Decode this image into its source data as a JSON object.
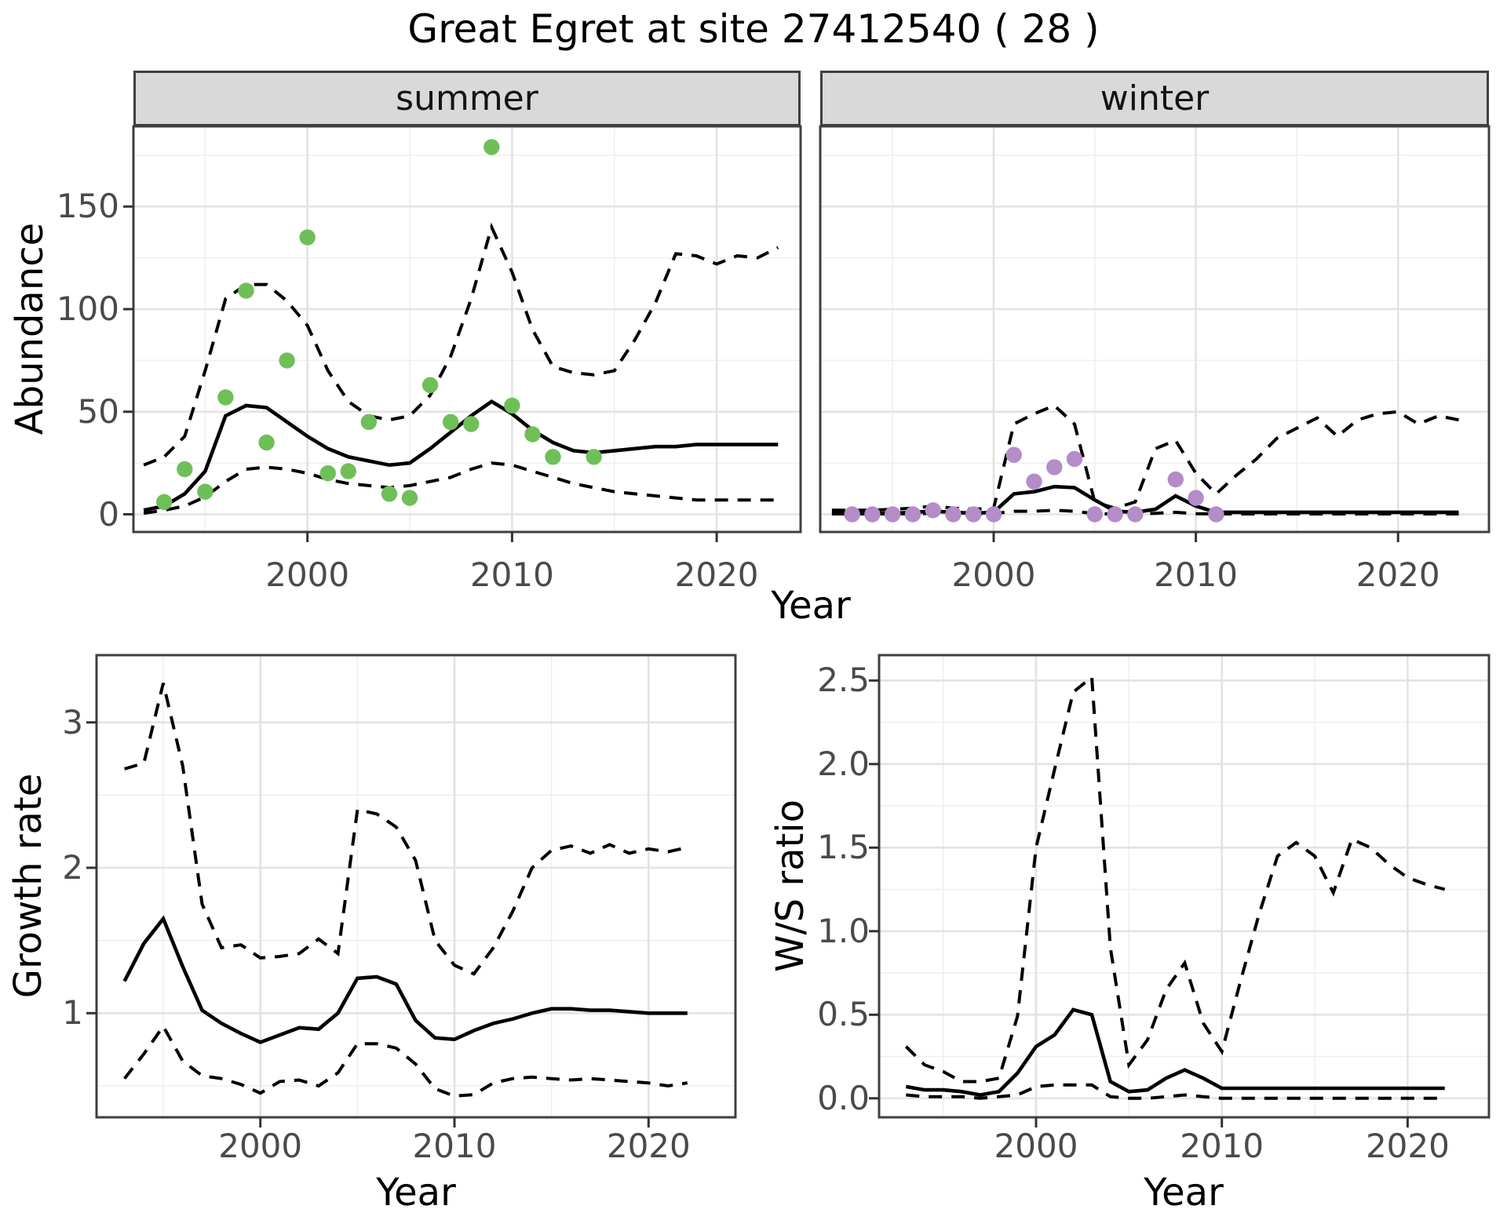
{
  "title": "Great Egret at site 27412540 ( 28 )",
  "facets": {
    "summer_label": "summer",
    "winter_label": "winter"
  },
  "axes": {
    "abundance_label": "Abundance",
    "growth_label": "Growth rate",
    "ws_label": "W/S ratio",
    "year_label": "Year"
  },
  "colors": {
    "summer_point": "#6FBF59",
    "winter_point": "#B48CC8",
    "line": "#000000",
    "grid_major": "#e3e3e3",
    "grid_minor": "#efefef",
    "strip_bg": "#d9d9d9",
    "panel_border": "#3f3f3f",
    "tick": "#333333",
    "tick_text": "#4a4a4a",
    "background": "#ffffff"
  },
  "chart_data": [
    {
      "id": "summer-abundance",
      "type": "line",
      "facet": "summer",
      "title": "",
      "xlabel": "Year",
      "ylabel": "Abundance",
      "xlim": [
        1991.5,
        2024.5
      ],
      "ylim": [
        -9,
        189
      ],
      "grid": true,
      "legend_position": "none",
      "xticks": [
        2000,
        2010,
        2020
      ],
      "xtick_labels": [
        "2000",
        "2010",
        "2020"
      ],
      "xminor": [
        1995,
        2005,
        2015
      ],
      "yticks": [
        0,
        50,
        100,
        150
      ],
      "ytick_labels": [
        "0",
        "50",
        "100",
        "150"
      ],
      "yminor": [
        25,
        75,
        125,
        175
      ],
      "point_color": "#6FBF59",
      "years": [
        1992,
        1993,
        1994,
        1995,
        1996,
        1997,
        1998,
        1999,
        2000,
        2001,
        2002,
        2003,
        2004,
        2005,
        2006,
        2007,
        2008,
        2009,
        2010,
        2011,
        2012,
        2013,
        2014,
        2015,
        2016,
        2017,
        2018,
        2019,
        2020,
        2021,
        2022,
        2023
      ],
      "median": [
        2,
        4,
        10,
        21,
        48,
        53,
        52,
        45,
        38,
        32,
        28,
        26,
        24,
        25,
        32,
        40,
        48,
        55,
        49,
        41,
        35,
        31,
        30,
        31,
        32,
        33,
        33,
        34,
        34,
        34,
        34,
        34
      ],
      "upper": [
        24,
        28,
        38,
        70,
        105,
        112,
        112,
        104,
        92,
        70,
        55,
        48,
        46,
        48,
        58,
        77,
        105,
        140,
        118,
        90,
        72,
        69,
        68,
        70,
        85,
        103,
        127,
        126,
        122,
        126,
        125,
        130
      ],
      "lower": [
        0.5,
        2,
        4,
        8.5,
        16,
        22,
        23,
        22,
        20,
        17,
        15,
        14,
        13,
        14,
        16,
        18,
        22,
        25,
        24,
        21,
        18,
        15,
        13,
        11,
        10,
        9,
        8,
        7,
        7,
        7,
        7,
        7
      ],
      "points": [
        [
          1993,
          6
        ],
        [
          1994,
          22
        ],
        [
          1995,
          11
        ],
        [
          1996,
          57
        ],
        [
          1997,
          109
        ],
        [
          1998,
          35
        ],
        [
          1999,
          75
        ],
        [
          2000,
          135
        ],
        [
          2001,
          20
        ],
        [
          2002,
          21
        ],
        [
          2003,
          45
        ],
        [
          2004,
          10
        ],
        [
          2005,
          8
        ],
        [
          2006,
          63
        ],
        [
          2007,
          45
        ],
        [
          2008,
          44
        ],
        [
          2009,
          179
        ],
        [
          2010,
          53
        ],
        [
          2011,
          39
        ],
        [
          2012,
          28
        ],
        [
          2014,
          28
        ]
      ]
    },
    {
      "id": "winter-abundance",
      "type": "line",
      "facet": "winter",
      "title": "",
      "xlabel": "Year",
      "ylabel": "Abundance",
      "xlim": [
        1991.5,
        2024.5
      ],
      "ylim": [
        -9,
        189
      ],
      "grid": true,
      "legend_position": "none",
      "xticks": [
        2000,
        2010,
        2020
      ],
      "xtick_labels": [
        "2000",
        "2010",
        "2020"
      ],
      "xminor": [
        1995,
        2005,
        2015
      ],
      "yticks": [
        0,
        50,
        100,
        150
      ],
      "ytick_labels": [
        "0",
        "50",
        "100",
        "150"
      ],
      "yminor": [
        25,
        75,
        125,
        175
      ],
      "point_color": "#B48CC8",
      "years": [
        1992,
        1993,
        1994,
        1995,
        1996,
        1997,
        1998,
        1999,
        2000,
        2001,
        2002,
        2003,
        2004,
        2005,
        2006,
        2007,
        2008,
        2009,
        2010,
        2011,
        2012,
        2013,
        2014,
        2015,
        2016,
        2017,
        2018,
        2019,
        2020,
        2021,
        2022,
        2023
      ],
      "median": [
        0.5,
        0.5,
        0.5,
        0.5,
        1,
        1.5,
        1,
        0.5,
        1,
        10,
        11,
        13.5,
        13,
        7,
        1.5,
        1,
        2.5,
        9,
        4,
        1,
        1,
        1,
        1,
        1,
        1,
        1,
        1,
        1,
        1,
        1,
        1,
        1
      ],
      "upper": [
        2,
        2,
        2,
        2.5,
        3,
        4,
        3,
        2.5,
        3,
        44,
        49,
        53,
        44,
        6,
        3,
        6,
        32,
        36,
        20,
        10,
        19,
        27,
        37,
        42,
        47,
        38,
        46,
        49,
        50,
        44,
        48,
        46
      ],
      "lower": [
        0.2,
        0.2,
        0.2,
        0.2,
        0.3,
        0.5,
        0.3,
        0.2,
        0.3,
        1.5,
        1.5,
        2,
        1.5,
        0.3,
        0.2,
        0.2,
        0.5,
        1,
        0.3,
        0.2,
        0.2,
        0.2,
        0.2,
        0.2,
        0.2,
        0.2,
        0.2,
        0.2,
        0.2,
        0.2,
        0.2,
        0.2
      ],
      "points": [
        [
          1993,
          0
        ],
        [
          1994,
          0
        ],
        [
          1995,
          0
        ],
        [
          1996,
          0
        ],
        [
          1997,
          2
        ],
        [
          1998,
          0
        ],
        [
          1999,
          0
        ],
        [
          2000,
          0
        ],
        [
          2001,
          29
        ],
        [
          2002,
          16
        ],
        [
          2003,
          23
        ],
        [
          2004,
          27
        ],
        [
          2005,
          0
        ],
        [
          2006,
          0
        ],
        [
          2007,
          0
        ],
        [
          2009,
          17
        ],
        [
          2010,
          8
        ],
        [
          2011,
          0
        ]
      ]
    },
    {
      "id": "growth-rate",
      "type": "line",
      "facet": "",
      "title": "",
      "xlabel": "Year",
      "ylabel": "Growth rate",
      "xlim": [
        1991.5,
        2024.5
      ],
      "ylim": [
        0.28,
        3.46
      ],
      "grid": true,
      "legend_position": "none",
      "xticks": [
        2000,
        2010,
        2020
      ],
      "xtick_labels": [
        "2000",
        "2010",
        "2020"
      ],
      "xminor": [
        1995,
        2005,
        2015
      ],
      "yticks": [
        1,
        2,
        3
      ],
      "ytick_labels": [
        "1",
        "2",
        "3"
      ],
      "yminor": [
        0.5,
        1.5,
        2.5
      ],
      "point_color": "",
      "years": [
        1993,
        1994,
        1995,
        1996,
        1997,
        1998,
        1999,
        2000,
        2001,
        2002,
        2003,
        2004,
        2005,
        2006,
        2007,
        2008,
        2009,
        2010,
        2011,
        2012,
        2013,
        2014,
        2015,
        2016,
        2017,
        2018,
        2019,
        2020,
        2021,
        2022
      ],
      "median": [
        1.22,
        1.48,
        1.65,
        1.32,
        1.02,
        0.93,
        0.86,
        0.8,
        0.85,
        0.9,
        0.89,
        1.0,
        1.24,
        1.25,
        1.2,
        0.95,
        0.83,
        0.82,
        0.88,
        0.93,
        0.96,
        1.0,
        1.03,
        1.03,
        1.02,
        1.02,
        1.01,
        1.0,
        1.0,
        1.0
      ],
      "upper": [
        2.68,
        2.72,
        3.27,
        2.7,
        1.75,
        1.45,
        1.47,
        1.38,
        1.39,
        1.41,
        1.51,
        1.41,
        2.4,
        2.37,
        2.28,
        2.05,
        1.5,
        1.33,
        1.27,
        1.45,
        1.7,
        2.0,
        2.12,
        2.15,
        2.1,
        2.16,
        2.1,
        2.13,
        2.11,
        2.14
      ],
      "lower": [
        0.55,
        0.72,
        0.91,
        0.67,
        0.57,
        0.55,
        0.51,
        0.45,
        0.53,
        0.54,
        0.5,
        0.59,
        0.79,
        0.79,
        0.76,
        0.65,
        0.48,
        0.43,
        0.44,
        0.52,
        0.55,
        0.56,
        0.55,
        0.54,
        0.55,
        0.54,
        0.53,
        0.52,
        0.5,
        0.52
      ],
      "points": []
    },
    {
      "id": "ws-ratio",
      "type": "line",
      "facet": "",
      "title": "",
      "xlabel": "Year",
      "ylabel": "W/S ratio",
      "xlim": [
        1991.5,
        2024.5
      ],
      "ylim": [
        -0.11,
        2.66
      ],
      "grid": true,
      "legend_position": "none",
      "xticks": [
        2000,
        2010,
        2020
      ],
      "xtick_labels": [
        "2000",
        "2010",
        "2020"
      ],
      "xminor": [
        1995,
        2005,
        2015
      ],
      "yticks": [
        0,
        0.5,
        1,
        1.5,
        2,
        2.5
      ],
      "ytick_labels": [
        "0.0",
        "0.5",
        "1.0",
        "1.5",
        "2.0",
        "2.5"
      ],
      "yminor": [
        0.25,
        0.75,
        1.25,
        1.75,
        2.25
      ],
      "point_color": "",
      "years": [
        1993,
        1994,
        1995,
        1996,
        1997,
        1998,
        1999,
        2000,
        2001,
        2002,
        2003,
        2004,
        2005,
        2006,
        2007,
        2008,
        2009,
        2010,
        2011,
        2012,
        2013,
        2014,
        2015,
        2016,
        2017,
        2018,
        2019,
        2020,
        2021,
        2022
      ],
      "median": [
        0.07,
        0.05,
        0.05,
        0.04,
        0.02,
        0.04,
        0.15,
        0.31,
        0.38,
        0.53,
        0.5,
        0.1,
        0.04,
        0.05,
        0.12,
        0.17,
        0.12,
        0.06,
        0.06,
        0.06,
        0.06,
        0.06,
        0.06,
        0.06,
        0.06,
        0.06,
        0.06,
        0.06,
        0.06,
        0.06
      ],
      "upper": [
        0.31,
        0.2,
        0.16,
        0.1,
        0.1,
        0.12,
        0.49,
        1.5,
        1.97,
        2.43,
        2.52,
        0.9,
        0.2,
        0.35,
        0.65,
        0.81,
        0.45,
        0.28,
        0.7,
        1.1,
        1.45,
        1.53,
        1.45,
        1.23,
        1.55,
        1.5,
        1.4,
        1.32,
        1.28,
        1.25
      ],
      "lower": [
        0.02,
        0.01,
        0.01,
        0.01,
        0,
        0.01,
        0.02,
        0.07,
        0.08,
        0.08,
        0.08,
        0.01,
        0,
        0,
        0.01,
        0.02,
        0.01,
        0,
        0,
        0,
        0,
        0,
        0,
        0,
        0,
        0,
        0,
        0,
        0,
        0
      ],
      "points": []
    }
  ]
}
